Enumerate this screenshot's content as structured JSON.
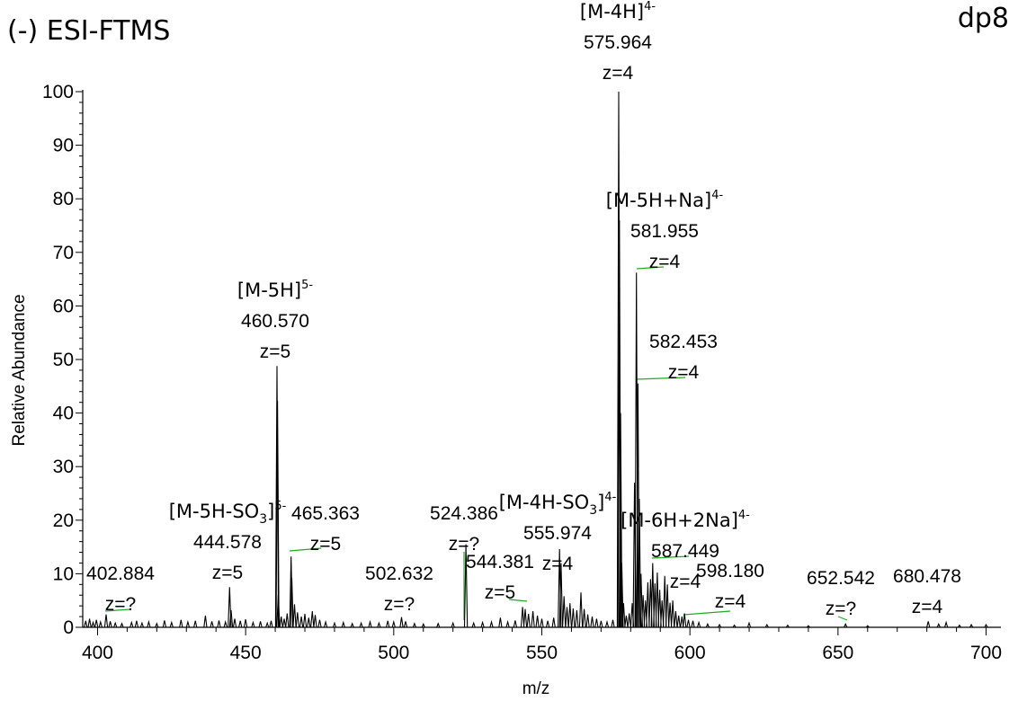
{
  "chart_data": {
    "type": "line",
    "title_left": "(-) ESI-FTMS",
    "title_right": "dp8",
    "xlabel": "m/z",
    "ylabel": "Relative Abundance",
    "xlim": [
      395,
      705
    ],
    "ylim": [
      0,
      100
    ],
    "xticks": [
      400,
      450,
      500,
      550,
      600,
      650,
      700
    ],
    "yticks": [
      0,
      10,
      20,
      30,
      40,
      50,
      60,
      70,
      80,
      90,
      100
    ],
    "grid": false,
    "peaks": [
      {
        "mz": 396.0,
        "ab": 1.2
      },
      {
        "mz": 397.3,
        "ab": 1.6
      },
      {
        "mz": 398.5,
        "ab": 0.9
      },
      {
        "mz": 399.6,
        "ab": 1.4
      },
      {
        "mz": 401.0,
        "ab": 1.0
      },
      {
        "mz": 402.884,
        "ab": 2.4
      },
      {
        "mz": 404.3,
        "ab": 1.1
      },
      {
        "mz": 406.0,
        "ab": 0.8
      },
      {
        "mz": 408.2,
        "ab": 0.7
      },
      {
        "mz": 411.5,
        "ab": 0.9
      },
      {
        "mz": 413.2,
        "ab": 1.2
      },
      {
        "mz": 415.0,
        "ab": 0.8
      },
      {
        "mz": 417.3,
        "ab": 1.0
      },
      {
        "mz": 420.0,
        "ab": 0.7
      },
      {
        "mz": 422.6,
        "ab": 1.3
      },
      {
        "mz": 425.0,
        "ab": 0.9
      },
      {
        "mz": 428.2,
        "ab": 1.4
      },
      {
        "mz": 430.5,
        "ab": 1.0
      },
      {
        "mz": 433.0,
        "ab": 1.2
      },
      {
        "mz": 436.4,
        "ab": 2.2
      },
      {
        "mz": 438.6,
        "ab": 1.1
      },
      {
        "mz": 441.0,
        "ab": 1.3
      },
      {
        "mz": 443.2,
        "ab": 1.0
      },
      {
        "mz": 444.578,
        "ab": 7.5
      },
      {
        "mz": 445.1,
        "ab": 3.2
      },
      {
        "mz": 446.3,
        "ab": 1.6
      },
      {
        "mz": 448.2,
        "ab": 1.2
      },
      {
        "mz": 450.0,
        "ab": 1.5
      },
      {
        "mz": 452.5,
        "ab": 0.9
      },
      {
        "mz": 455.0,
        "ab": 1.1
      },
      {
        "mz": 457.3,
        "ab": 0.8
      },
      {
        "mz": 458.6,
        "ab": 1.2
      },
      {
        "mz": 460.57,
        "ab": 48.8
      },
      {
        "mz": 460.77,
        "ab": 42.3
      },
      {
        "mz": 461.0,
        "ab": 6.0
      },
      {
        "mz": 462.0,
        "ab": 2.0
      },
      {
        "mz": 463.0,
        "ab": 1.6
      },
      {
        "mz": 464.0,
        "ab": 2.6
      },
      {
        "mz": 465.363,
        "ab": 13.2
      },
      {
        "mz": 465.6,
        "ab": 9.2
      },
      {
        "mz": 466.5,
        "ab": 4.3
      },
      {
        "mz": 467.5,
        "ab": 2.8
      },
      {
        "mz": 468.8,
        "ab": 2.0
      },
      {
        "mz": 470.0,
        "ab": 2.5
      },
      {
        "mz": 471.3,
        "ab": 1.8
      },
      {
        "mz": 472.5,
        "ab": 3.0
      },
      {
        "mz": 473.5,
        "ab": 2.3
      },
      {
        "mz": 475.0,
        "ab": 1.4
      },
      {
        "mz": 477.0,
        "ab": 1.0
      },
      {
        "mz": 480.0,
        "ab": 0.8
      },
      {
        "mz": 483.0,
        "ab": 0.9
      },
      {
        "mz": 486.0,
        "ab": 0.7
      },
      {
        "mz": 489.0,
        "ab": 0.8
      },
      {
        "mz": 492.0,
        "ab": 1.0
      },
      {
        "mz": 495.0,
        "ab": 0.8
      },
      {
        "mz": 498.0,
        "ab": 1.2
      },
      {
        "mz": 500.0,
        "ab": 1.0
      },
      {
        "mz": 502.632,
        "ab": 1.9
      },
      {
        "mz": 504.0,
        "ab": 1.1
      },
      {
        "mz": 507.0,
        "ab": 0.7
      },
      {
        "mz": 510.0,
        "ab": 0.6
      },
      {
        "mz": 515.0,
        "ab": 0.7
      },
      {
        "mz": 520.0,
        "ab": 0.8
      },
      {
        "mz": 524.386,
        "ab": 15.5
      },
      {
        "mz": 527.0,
        "ab": 0.8
      },
      {
        "mz": 530.0,
        "ab": 0.9
      },
      {
        "mz": 533.0,
        "ab": 1.0
      },
      {
        "mz": 536.0,
        "ab": 1.8
      },
      {
        "mz": 538.5,
        "ab": 1.0
      },
      {
        "mz": 541.0,
        "ab": 1.3
      },
      {
        "mz": 543.5,
        "ab": 3.8
      },
      {
        "mz": 544.381,
        "ab": 3.4
      },
      {
        "mz": 545.5,
        "ab": 2.5
      },
      {
        "mz": 547.0,
        "ab": 3.0
      },
      {
        "mz": 548.5,
        "ab": 2.2
      },
      {
        "mz": 550.0,
        "ab": 1.6
      },
      {
        "mz": 552.0,
        "ab": 1.2
      },
      {
        "mz": 554.0,
        "ab": 1.8
      },
      {
        "mz": 555.974,
        "ab": 14.6
      },
      {
        "mz": 556.5,
        "ab": 12.0
      },
      {
        "mz": 557.5,
        "ab": 5.8
      },
      {
        "mz": 558.5,
        "ab": 3.8
      },
      {
        "mz": 559.5,
        "ab": 4.5
      },
      {
        "mz": 560.6,
        "ab": 3.5
      },
      {
        "mz": 561.8,
        "ab": 3.2
      },
      {
        "mz": 563.2,
        "ab": 6.5
      },
      {
        "mz": 564.3,
        "ab": 3.4
      },
      {
        "mz": 565.5,
        "ab": 2.4
      },
      {
        "mz": 567.0,
        "ab": 2.0
      },
      {
        "mz": 568.5,
        "ab": 1.6
      },
      {
        "mz": 570.0,
        "ab": 1.2
      },
      {
        "mz": 572.0,
        "ab": 1.0
      },
      {
        "mz": 574.0,
        "ab": 1.4
      },
      {
        "mz": 575.964,
        "ab": 100
      },
      {
        "mz": 576.2,
        "ab": 76.0
      },
      {
        "mz": 576.6,
        "ab": 40.0
      },
      {
        "mz": 577.0,
        "ab": 12.0
      },
      {
        "mz": 577.6,
        "ab": 4.5
      },
      {
        "mz": 578.5,
        "ab": 2.2
      },
      {
        "mz": 579.5,
        "ab": 2.6
      },
      {
        "mz": 580.5,
        "ab": 4.5
      },
      {
        "mz": 581.3,
        "ab": 27.0
      },
      {
        "mz": 581.955,
        "ab": 66.2
      },
      {
        "mz": 582.453,
        "ab": 45.5
      },
      {
        "mz": 582.9,
        "ab": 24.0
      },
      {
        "mz": 583.5,
        "ab": 10.0
      },
      {
        "mz": 584.2,
        "ab": 6.0
      },
      {
        "mz": 585.0,
        "ab": 5.0
      },
      {
        "mz": 585.8,
        "ab": 8.4
      },
      {
        "mz": 586.7,
        "ab": 9.0
      },
      {
        "mz": 587.449,
        "ab": 12.0
      },
      {
        "mz": 588.2,
        "ab": 8.2
      },
      {
        "mz": 589.0,
        "ab": 10.2
      },
      {
        "mz": 589.8,
        "ab": 7.0
      },
      {
        "mz": 590.6,
        "ab": 5.0
      },
      {
        "mz": 591.5,
        "ab": 9.6
      },
      {
        "mz": 592.4,
        "ab": 8.0
      },
      {
        "mz": 593.3,
        "ab": 4.6
      },
      {
        "mz": 594.2,
        "ab": 5.0
      },
      {
        "mz": 595.2,
        "ab": 3.0
      },
      {
        "mz": 596.2,
        "ab": 2.2
      },
      {
        "mz": 597.3,
        "ab": 2.0
      },
      {
        "mz": 598.18,
        "ab": 2.6
      },
      {
        "mz": 599.5,
        "ab": 1.4
      },
      {
        "mz": 601.0,
        "ab": 1.2
      },
      {
        "mz": 603.0,
        "ab": 0.9
      },
      {
        "mz": 606.0,
        "ab": 0.6
      },
      {
        "mz": 610.0,
        "ab": 0.5
      },
      {
        "mz": 615.0,
        "ab": 0.4
      },
      {
        "mz": 620.0,
        "ab": 0.8
      },
      {
        "mz": 626.0,
        "ab": 0.5
      },
      {
        "mz": 633.0,
        "ab": 0.4
      },
      {
        "mz": 640.0,
        "ab": 0.3
      },
      {
        "mz": 652.542,
        "ab": 0.6
      },
      {
        "mz": 660.0,
        "ab": 0.3
      },
      {
        "mz": 680.478,
        "ab": 1.1
      },
      {
        "mz": 684.0,
        "ab": 0.6
      },
      {
        "mz": 686.5,
        "ab": 0.9
      },
      {
        "mz": 691.0,
        "ab": 0.4
      },
      {
        "mz": 695.0,
        "ab": 0.5
      },
      {
        "mz": 700.0,
        "ab": 0.5
      }
    ],
    "annotations": [
      {
        "mz": 575.964,
        "ion": "[M-4H]",
        "charge": "4-",
        "mass": "575.964",
        "z": "z=4"
      },
      {
        "mz": 581.955,
        "ion": "[M-5H+Na]",
        "charge": "4-",
        "mass": "581.955",
        "z": "z=4"
      },
      {
        "mz": 582.453,
        "ion": "",
        "charge": "",
        "mass": "582.453",
        "z": "z=4"
      },
      {
        "mz": 460.57,
        "ion": "[M-5H]",
        "charge": "5-",
        "mass": "460.570",
        "z": "z=5"
      },
      {
        "mz": 444.578,
        "ion": "[M-5H-SO3]",
        "charge": "5-",
        "mass": "444.578",
        "z": "z=5"
      },
      {
        "mz": 465.363,
        "ion": "",
        "charge": "",
        "mass": "465.363",
        "z": "z=5"
      },
      {
        "mz": 402.884,
        "ion": "",
        "charge": "",
        "mass": "402.884",
        "z": "z=?"
      },
      {
        "mz": 502.632,
        "ion": "",
        "charge": "",
        "mass": "502.632",
        "z": "z=?"
      },
      {
        "mz": 524.386,
        "ion": "",
        "charge": "",
        "mass": "524.386",
        "z": "z=?"
      },
      {
        "mz": 544.381,
        "ion": "",
        "charge": "",
        "mass": "544.381",
        "z": "z=5"
      },
      {
        "mz": 555.974,
        "ion": "[M-4H-SO3]",
        "charge": "4-",
        "mass": "555.974",
        "z": "z=4"
      },
      {
        "mz": 587.449,
        "ion": "[M-6H+2Na]",
        "charge": "4-",
        "mass": "587.449",
        "z": "z=4"
      },
      {
        "mz": 598.18,
        "ion": "",
        "charge": "",
        "mass": "598.180",
        "z": "z=4"
      },
      {
        "mz": 652.542,
        "ion": "",
        "charge": "",
        "mass": "652.542",
        "z": "z=?"
      },
      {
        "mz": 680.478,
        "ion": "",
        "charge": "",
        "mass": "680.478",
        "z": "z=4"
      }
    ],
    "colors": {
      "spectrum": "#000000",
      "label_line": "#22aa22"
    }
  }
}
